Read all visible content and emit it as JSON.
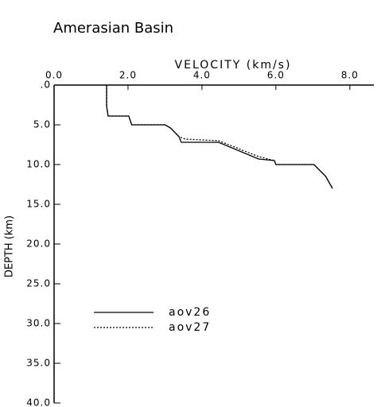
{
  "chart_data": {
    "type": "line",
    "title": "Amerasian Basin",
    "x_label": "VELOCITY (km/s)",
    "y_label": "DEPTH (km)",
    "xlim": [
      0,
      8.65
    ],
    "ylim": [
      0,
      40
    ],
    "y_inverted": true,
    "xticks": [
      {
        "value": 0,
        "label": "0.0"
      },
      {
        "value": 2,
        "label": "2.0"
      },
      {
        "value": 4,
        "label": "4.0"
      },
      {
        "value": 6,
        "label": "6.0"
      },
      {
        "value": 8,
        "label": "8.0"
      }
    ],
    "yticks": [
      {
        "value": 0,
        "label": ".0"
      },
      {
        "value": 5,
        "label": "5.0"
      },
      {
        "value": 10,
        "label": "10.0"
      },
      {
        "value": 15,
        "label": "15.0"
      },
      {
        "value": 20,
        "label": "20.0"
      },
      {
        "value": 25,
        "label": "25.0"
      },
      {
        "value": 30,
        "label": "30.0"
      },
      {
        "value": 35,
        "label": "35.0"
      },
      {
        "value": 40,
        "label": "40.0"
      }
    ],
    "series": [
      {
        "name": "aov26",
        "color": "#000000",
        "dash": "solid",
        "x": [
          1.42,
          1.42,
          1.46,
          2.02,
          2.1,
          3.0,
          3.15,
          3.38,
          3.44,
          4.45,
          5.53,
          5.96,
          6.0,
          7.03,
          7.35,
          7.53
        ],
        "values": [
          0,
          2.6,
          3.9,
          3.9,
          5.0,
          5.0,
          5.4,
          6.5,
          7.2,
          7.2,
          9.3,
          9.5,
          10.0,
          10.0,
          11.5,
          13.0
        ]
      },
      {
        "name": "aov27",
        "color": "#000000",
        "dash": "dotted",
        "x": [
          1.42,
          1.42,
          1.46,
          2.02,
          2.1,
          3.0,
          3.15,
          3.38,
          3.55,
          4.45,
          5.53,
          5.96,
          6.0,
          7.03,
          7.35,
          7.53
        ],
        "values": [
          0,
          2.6,
          3.9,
          3.9,
          5.0,
          5.0,
          5.4,
          6.5,
          6.8,
          7.0,
          9.0,
          9.5,
          10.0,
          10.0,
          11.5,
          13.0
        ]
      }
    ]
  }
}
